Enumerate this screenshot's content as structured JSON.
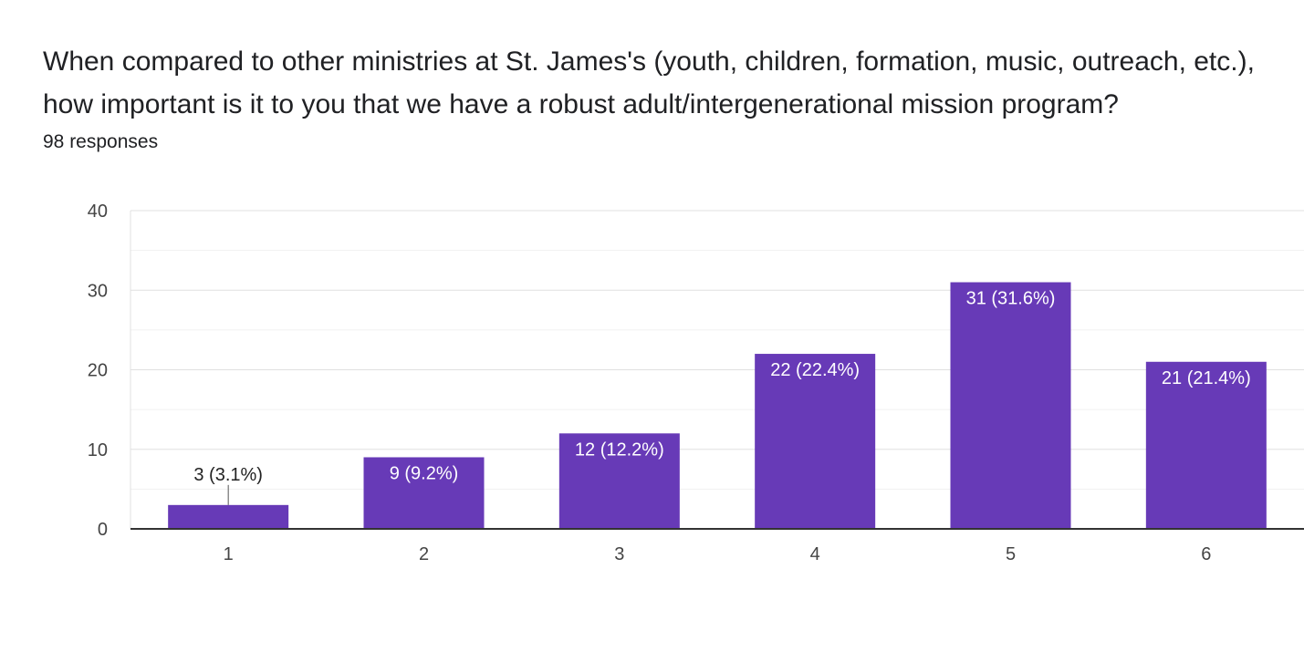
{
  "form": {
    "question": "When compared to other ministries at St. James's (youth, children, formation, music, outreach, etc.), how important is it to you that we have a robust adult/intergenerational mission program?",
    "responses": "98 responses"
  },
  "colors": {
    "bar": "#673ab7",
    "grid_major": "#e0e0e0",
    "grid_minor": "#f1f1f1",
    "baseline": "#333333"
  },
  "chart_data": {
    "type": "bar",
    "title": "",
    "xlabel": "",
    "ylabel": "",
    "categories": [
      "1",
      "2",
      "3",
      "4",
      "5",
      "6"
    ],
    "values": [
      3,
      9,
      12,
      22,
      31,
      21
    ],
    "data_labels": [
      "3 (3.1%)",
      "9 (9.2%)",
      "12 (12.2%)",
      "22 (22.4%)",
      "31 (31.6%)",
      "21 (21.4%)"
    ],
    "ylim": [
      0,
      40
    ],
    "yticks": [
      "0",
      "10",
      "20",
      "30",
      "40"
    ],
    "grid": true,
    "legend": "none"
  }
}
